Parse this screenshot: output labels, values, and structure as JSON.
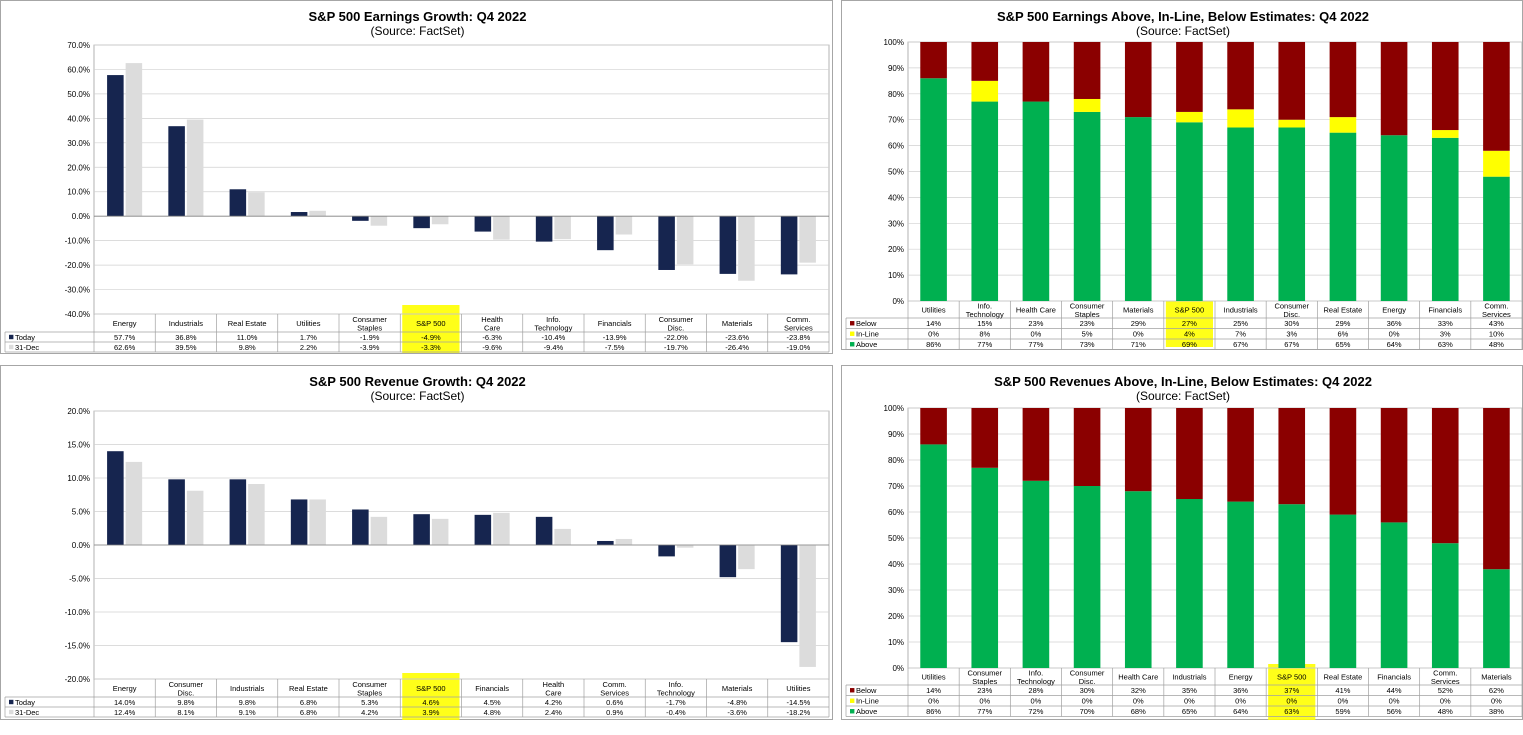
{
  "colors": {
    "today": "#16254f",
    "dec31": "#dcdcdc",
    "below": "#8b0000",
    "inline": "#ffff00",
    "above": "#00b050",
    "highlight": "#ffff00",
    "grid": "#d0d0d0"
  },
  "chart_data": [
    {
      "id": "eg",
      "type": "bar",
      "title": "S&P 500 Earnings Growth: Q4 2022",
      "subtitle": "(Source: FactSet)",
      "categories": [
        "Energy",
        "Industrials",
        "Real Estate",
        "Utilities",
        "Consumer\nStaples",
        "S&P 500",
        "Health\nCare",
        "Info.\nTechnology",
        "Financials",
        "Consumer\nDisc.",
        "Materials",
        "Comm.\nServices"
      ],
      "series": [
        {
          "name": "Today",
          "values": [
            57.7,
            36.8,
            11.0,
            1.7,
            -1.9,
            -4.9,
            -6.3,
            -10.4,
            -13.9,
            -22.0,
            -23.6,
            -23.8
          ]
        },
        {
          "name": "31-Dec",
          "values": [
            62.6,
            39.5,
            9.8,
            2.2,
            -3.9,
            -3.3,
            -9.6,
            -9.4,
            -7.5,
            -19.7,
            -26.4,
            -19.0
          ]
        }
      ],
      "ylim": [
        -40,
        70
      ],
      "yticks": [
        70,
        60,
        50,
        40,
        30,
        20,
        10,
        0,
        -10,
        -20,
        -30,
        -40
      ],
      "ytick_labels": [
        "70.0%",
        "60.0%",
        "50.0%",
        "40.0%",
        "30.0%",
        "20.0%",
        "10.0%",
        "0.0%",
        "-10.0%",
        "-20.0%",
        "-30.0%",
        "-40.0%"
      ],
      "table_labels": [
        [
          "57.7%",
          "36.8%",
          "11.0%",
          "1.7%",
          "-1.9%",
          "-4.9%",
          "-6.3%",
          "-10.4%",
          "-13.9%",
          "-22.0%",
          "-23.6%",
          "-23.8%"
        ],
        [
          "62.6%",
          "39.5%",
          "9.8%",
          "2.2%",
          "-3.9%",
          "-3.3%",
          "-9.6%",
          "-9.4%",
          "-7.5%",
          "-19.7%",
          "-26.4%",
          "-19.0%"
        ]
      ],
      "highlight": "S&P 500",
      "grid": true
    },
    {
      "id": "ea",
      "type": "stacked-bar",
      "title": "S&P 500 Earnings Above, In-Line, Below Estimates: Q4 2022",
      "subtitle": "(Source: FactSet)",
      "categories": [
        "Utilities",
        "Info.\nTechnology",
        "Health Care",
        "Consumer\nStaples",
        "Materials",
        "S&P 500",
        "Industrials",
        "Consumer\nDisc.",
        "Real Estate",
        "Energy",
        "Financials",
        "Comm.\nServices"
      ],
      "series": [
        {
          "name": "Below",
          "values": [
            14,
            15,
            23,
            23,
            29,
            27,
            25,
            30,
            29,
            36,
            33,
            43
          ]
        },
        {
          "name": "In-Line",
          "values": [
            0,
            8,
            0,
            5,
            0,
            4,
            7,
            3,
            6,
            0,
            3,
            10
          ]
        },
        {
          "name": "Above",
          "values": [
            86,
            77,
            77,
            73,
            71,
            69,
            67,
            67,
            65,
            64,
            63,
            48
          ]
        }
      ],
      "ylim": [
        0,
        100
      ],
      "yticks": [
        100,
        90,
        80,
        70,
        60,
        50,
        40,
        30,
        20,
        10,
        0
      ],
      "ytick_labels": [
        "100%",
        "90%",
        "80%",
        "70%",
        "60%",
        "50%",
        "40%",
        "30%",
        "20%",
        "10%",
        "0%"
      ],
      "table_labels": [
        [
          "14%",
          "15%",
          "23%",
          "23%",
          "29%",
          "27%",
          "25%",
          "30%",
          "29%",
          "36%",
          "33%",
          "43%"
        ],
        [
          "0%",
          "8%",
          "0%",
          "5%",
          "0%",
          "4%",
          "7%",
          "3%",
          "6%",
          "0%",
          "3%",
          "10%"
        ],
        [
          "86%",
          "77%",
          "77%",
          "73%",
          "71%",
          "69%",
          "67%",
          "67%",
          "65%",
          "64%",
          "63%",
          "48%"
        ]
      ],
      "highlight": "S&P 500",
      "grid": true
    },
    {
      "id": "rg",
      "type": "bar",
      "title": "S&P 500 Revenue Growth: Q4 2022",
      "subtitle": "(Source: FactSet)",
      "categories": [
        "Energy",
        "Consumer\nDisc.",
        "Industrials",
        "Real Estate",
        "Consumer\nStaples",
        "S&P 500",
        "Financials",
        "Health\nCare",
        "Comm.\nServices",
        "Info.\nTechnology",
        "Materials",
        "Utilities"
      ],
      "series": [
        {
          "name": "Today",
          "values": [
            14.0,
            9.8,
            9.8,
            6.8,
            5.3,
            4.6,
            4.5,
            4.2,
            0.6,
            -1.7,
            -4.8,
            -14.5
          ]
        },
        {
          "name": "31-Dec",
          "values": [
            12.4,
            8.1,
            9.1,
            6.8,
            4.2,
            3.9,
            4.8,
            2.4,
            0.9,
            -0.4,
            -3.6,
            -18.2
          ]
        }
      ],
      "ylim": [
        -20,
        20
      ],
      "yticks": [
        20,
        15,
        10,
        5,
        0,
        -5,
        -10,
        -15,
        -20
      ],
      "ytick_labels": [
        "20.0%",
        "15.0%",
        "10.0%",
        "5.0%",
        "0.0%",
        "-5.0%",
        "-10.0%",
        "-15.0%",
        "-20.0%"
      ],
      "table_labels": [
        [
          "14.0%",
          "9.8%",
          "9.8%",
          "6.8%",
          "5.3%",
          "4.6%",
          "4.5%",
          "4.2%",
          "0.6%",
          "-1.7%",
          "-4.8%",
          "-14.5%"
        ],
        [
          "12.4%",
          "8.1%",
          "9.1%",
          "6.8%",
          "4.2%",
          "3.9%",
          "4.8%",
          "2.4%",
          "0.9%",
          "-0.4%",
          "-3.6%",
          "-18.2%"
        ]
      ],
      "highlight": "S&P 500",
      "grid": true
    },
    {
      "id": "ra",
      "type": "stacked-bar",
      "title": "S&P 500 Revenues Above, In-Line, Below Estimates: Q4 2022",
      "subtitle": "(Source: FactSet)",
      "categories": [
        "Utilities",
        "Consumer\nStaples",
        "Info.\nTechnology",
        "Consumer\nDisc.",
        "Health Care",
        "Industrials",
        "Energy",
        "S&P 500",
        "Real Estate",
        "Financials",
        "Comm.\nServices",
        "Materials"
      ],
      "series": [
        {
          "name": "Below",
          "values": [
            14,
            23,
            28,
            30,
            32,
            35,
            36,
            37,
            41,
            44,
            52,
            62
          ]
        },
        {
          "name": "In-Line",
          "values": [
            0,
            0,
            0,
            0,
            0,
            0,
            0,
            0,
            0,
            0,
            0,
            0
          ]
        },
        {
          "name": "Above",
          "values": [
            86,
            77,
            72,
            70,
            68,
            65,
            64,
            63,
            59,
            56,
            48,
            38
          ]
        }
      ],
      "ylim": [
        0,
        100
      ],
      "yticks": [
        100,
        90,
        80,
        70,
        60,
        50,
        40,
        30,
        20,
        10,
        0
      ],
      "ytick_labels": [
        "100%",
        "90%",
        "80%",
        "70%",
        "60%",
        "50%",
        "40%",
        "30%",
        "20%",
        "10%",
        "0%"
      ],
      "table_labels": [
        [
          "14%",
          "23%",
          "28%",
          "30%",
          "32%",
          "35%",
          "36%",
          "37%",
          "41%",
          "44%",
          "52%",
          "62%"
        ],
        [
          "0%",
          "0%",
          "0%",
          "0%",
          "0%",
          "0%",
          "0%",
          "0%",
          "0%",
          "0%",
          "0%",
          "0%"
        ],
        [
          "86%",
          "77%",
          "72%",
          "70%",
          "68%",
          "65%",
          "64%",
          "63%",
          "59%",
          "56%",
          "48%",
          "38%"
        ]
      ],
      "highlight": "S&P 500",
      "grid": true
    }
  ]
}
